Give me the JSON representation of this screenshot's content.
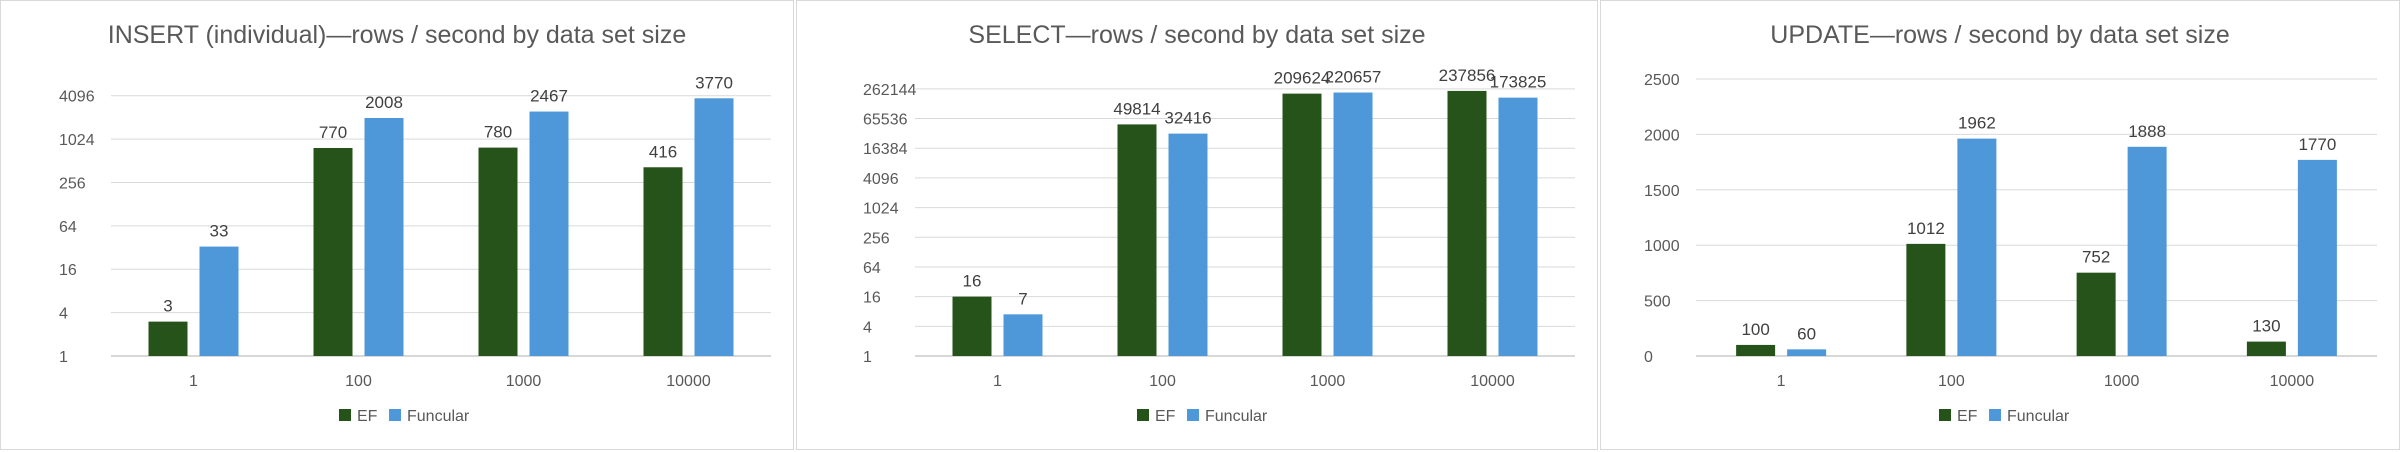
{
  "chart_data": [
    {
      "type": "bar",
      "title": "INSERT (individual)—rows / second by data set size",
      "categories": [
        "1",
        "100",
        "1000",
        "10000"
      ],
      "series": [
        {
          "name": "EF",
          "values": [
            3,
            770,
            780,
            416
          ],
          "color": "#255319"
        },
        {
          "name": "Funcular",
          "values": [
            33,
            2008,
            2467,
            3770
          ],
          "color": "#4e98da"
        }
      ],
      "scale": "log2",
      "yticks": [
        1,
        4,
        16,
        64,
        256,
        1024,
        4096
      ],
      "ylim": [
        1,
        8192
      ],
      "xlabel": "",
      "ylabel": "",
      "grid": true,
      "legend": "bottom"
    },
    {
      "type": "bar",
      "title": "SELECT—rows / second by data set size",
      "categories": [
        "1",
        "100",
        "1000",
        "10000"
      ],
      "series": [
        {
          "name": "EF",
          "values": [
            16,
            49814,
            209624,
            237856
          ],
          "color": "#255319"
        },
        {
          "name": "Funcular",
          "values": [
            7,
            32416,
            220657,
            173825
          ],
          "color": "#4e98da"
        }
      ],
      "scale": "log2",
      "yticks": [
        1,
        4,
        16,
        64,
        256,
        1024,
        4096,
        16384,
        65536,
        262144
      ],
      "ylim": [
        1,
        524288
      ],
      "xlabel": "",
      "ylabel": "",
      "grid": true,
      "legend": "bottom"
    },
    {
      "type": "bar",
      "title": "UPDATE—rows / second by data set size",
      "categories": [
        "1",
        "100",
        "1000",
        "10000"
      ],
      "series": [
        {
          "name": "EF",
          "values": [
            100,
            1012,
            752,
            130
          ],
          "color": "#255319"
        },
        {
          "name": "Funcular",
          "values": [
            60,
            1962,
            1888,
            1770
          ],
          "color": "#4e98da"
        }
      ],
      "scale": "linear",
      "yticks": [
        0,
        500,
        1000,
        1500,
        2000,
        2500
      ],
      "ylim": [
        0,
        2500
      ],
      "xlabel": "",
      "ylabel": "",
      "grid": true,
      "legend": "bottom"
    }
  ]
}
